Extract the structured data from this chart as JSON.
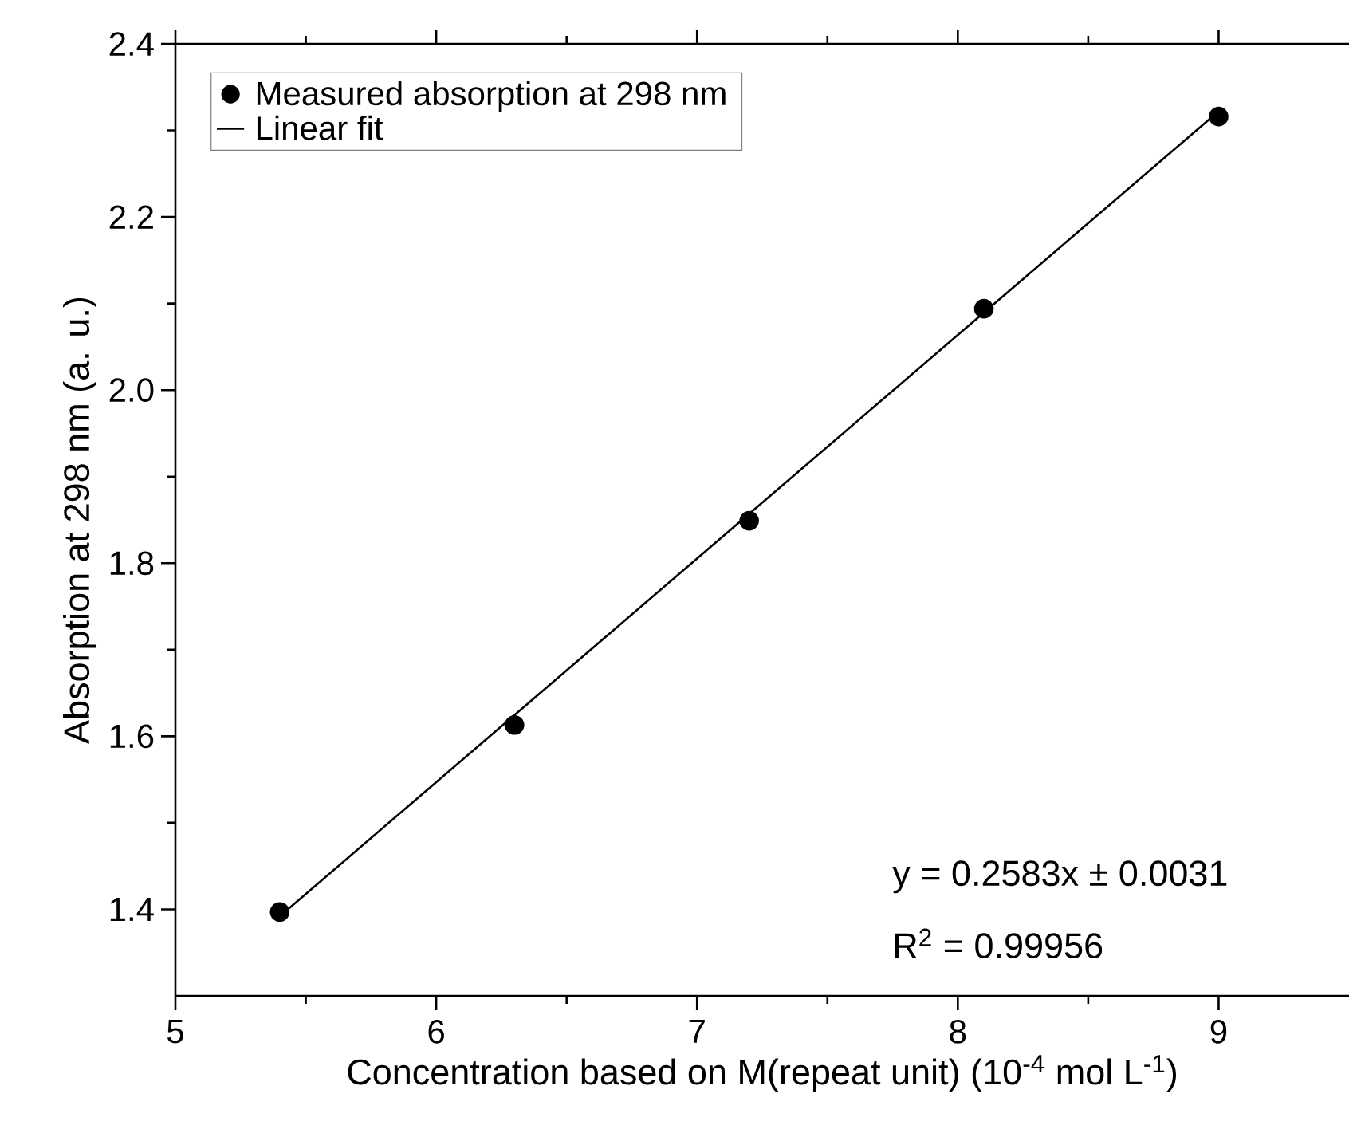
{
  "chart_data": {
    "type": "scatter",
    "xlabel": "Concentration based on M(repeat unit) (10$^{-4}$ mol L$^{-1}$)",
    "ylabel": "Absorption at 298 nm (a. u.)",
    "xlim": [
      5,
      9.5
    ],
    "xticks": [
      5,
      6,
      7,
      8,
      9
    ],
    "ylim": [
      1.3,
      2.4
    ],
    "yticks": [
      {
        "value": 1.4,
        "label": "1.4"
      },
      {
        "value": 1.6,
        "label": "1.6"
      },
      {
        "value": 1.8,
        "label": "1.8"
      },
      {
        "value": 2.0,
        "label": "2.0"
      },
      {
        "value": 2.2,
        "label": "2.2"
      },
      {
        "value": 2.4,
        "label": "2.4"
      }
    ],
    "legend": "top left",
    "grid": false,
    "series": [
      {
        "name": "Measured absorption at 298 nm",
        "marker": "circle",
        "color": "#000000",
        "x": [
          5.4,
          6.3,
          7.2,
          8.1,
          9.0
        ],
        "values": [
          1.397,
          1.613,
          1.849,
          2.094,
          2.316
        ]
      },
      {
        "name": "Linear fit",
        "type": "line",
        "marker": "none",
        "color": "#000000",
        "line_style": "solid",
        "x": [
          5.4,
          9.0
        ],
        "values": [
          1.392,
          2.322
        ]
      }
    ],
    "annotations": [
      "y = 0.2583x ± 0.0031",
      "R$^{2}$ = 0.99956"
    ]
  }
}
